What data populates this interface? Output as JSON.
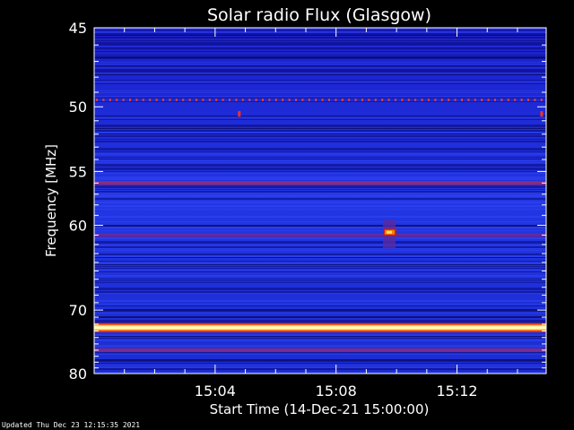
{
  "chart_data": {
    "type": "heatmap",
    "title": "Solar radio Flux (Glasgow)",
    "xlabel": "Start Time (14-Dec-21 15:00:00)",
    "ylabel": "Frequency [MHz]",
    "x_unit": "minutes after 15:00:00",
    "xlim": [
      0,
      14.95
    ],
    "ylim": [
      80,
      45
    ],
    "y_scale": "reciprocal",
    "x_ticks": [
      {
        "value": 4,
        "label": "15:04"
      },
      {
        "value": 8,
        "label": "15:08"
      },
      {
        "value": 12,
        "label": "15:12"
      }
    ],
    "y_ticks": [
      {
        "value": 45,
        "label": "45"
      },
      {
        "value": 50,
        "label": "50"
      },
      {
        "value": 55,
        "label": "55"
      },
      {
        "value": 60,
        "label": "60"
      },
      {
        "value": 70,
        "label": "70"
      },
      {
        "value": 80,
        "label": "80"
      }
    ],
    "background_color": "#1a2ad8",
    "bands": [
      {
        "freq": 72.5,
        "kind": "strong",
        "color": "#ffffc0"
      },
      {
        "freq": 49.5,
        "kind": "dotted",
        "color": "#ff4020"
      },
      {
        "freq": 56.0,
        "kind": "weak",
        "color": "#b02a60"
      },
      {
        "freq": 61.0,
        "kind": "weak",
        "color": "#7a2a8a"
      },
      {
        "freq": 76.0,
        "kind": "weak",
        "color": "#9a2a70"
      }
    ],
    "features": [
      {
        "time": 9.7,
        "freq": 60.7,
        "kind": "burst",
        "color": "#ff8000"
      },
      {
        "time": 4.8,
        "freq": 50.5,
        "kind": "spot",
        "color": "#ff3020"
      },
      {
        "time": 14.8,
        "freq": 50.5,
        "kind": "spot",
        "color": "#ff3020"
      }
    ]
  },
  "footer": {
    "updated": "Updated Thu Dec 23 12:15:35 2021"
  }
}
